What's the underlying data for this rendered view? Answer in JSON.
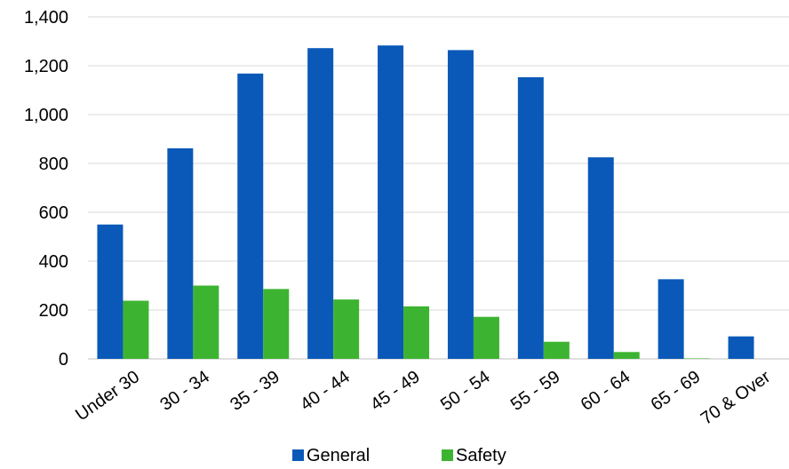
{
  "chart_data": {
    "type": "bar",
    "title": "",
    "xlabel": "",
    "ylabel": "",
    "categories": [
      "Under 30",
      "30 - 34",
      "35 - 39",
      "40 - 44",
      "45 - 49",
      "50 - 54",
      "55 - 59",
      "60 - 64",
      "65 - 69",
      "70 & Over"
    ],
    "series": [
      {
        "name": "General",
        "color": "#0a59b8",
        "values": [
          550,
          862,
          1168,
          1272,
          1283,
          1264,
          1153,
          825,
          326,
          92
        ]
      },
      {
        "name": "Safety",
        "color": "#3db431",
        "values": [
          238,
          300,
          286,
          243,
          215,
          172,
          70,
          28,
          2,
          0
        ]
      }
    ],
    "ylim": [
      0,
      1400
    ],
    "yticks": [
      0,
      200,
      400,
      600,
      800,
      1000,
      1200,
      1400
    ],
    "ytick_labels": [
      "0",
      "200",
      "400",
      "600",
      "800",
      "1,000",
      "1,200",
      "1,400"
    ],
    "grid": true,
    "legend_position": "bottom"
  }
}
